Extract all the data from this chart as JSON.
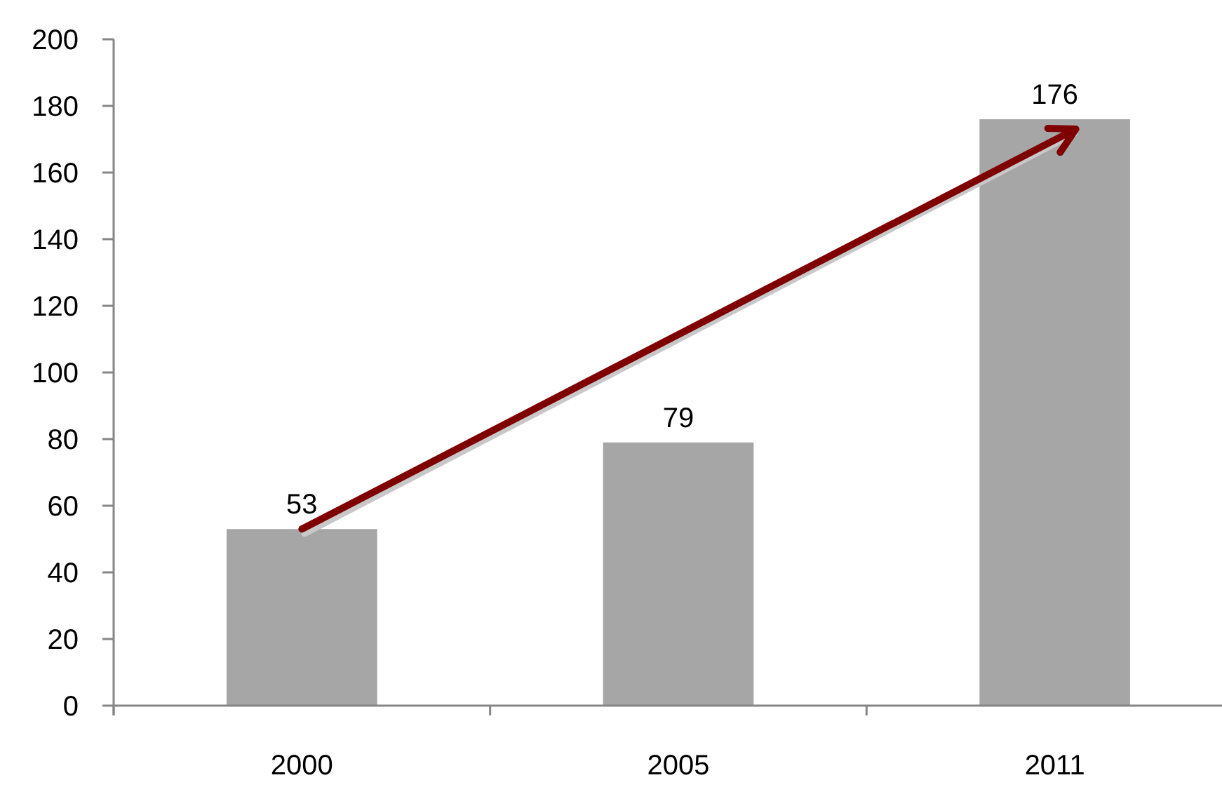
{
  "chart_data": {
    "type": "bar",
    "categories": [
      "2000",
      "2005",
      "2011"
    ],
    "values": [
      53,
      79,
      176
    ],
    "color": "#a6a6a6",
    "ylim": [
      0,
      200
    ],
    "yticks": [
      0,
      20,
      40,
      60,
      80,
      100,
      120,
      140,
      160,
      180,
      200
    ],
    "data_labels": true
  }
}
